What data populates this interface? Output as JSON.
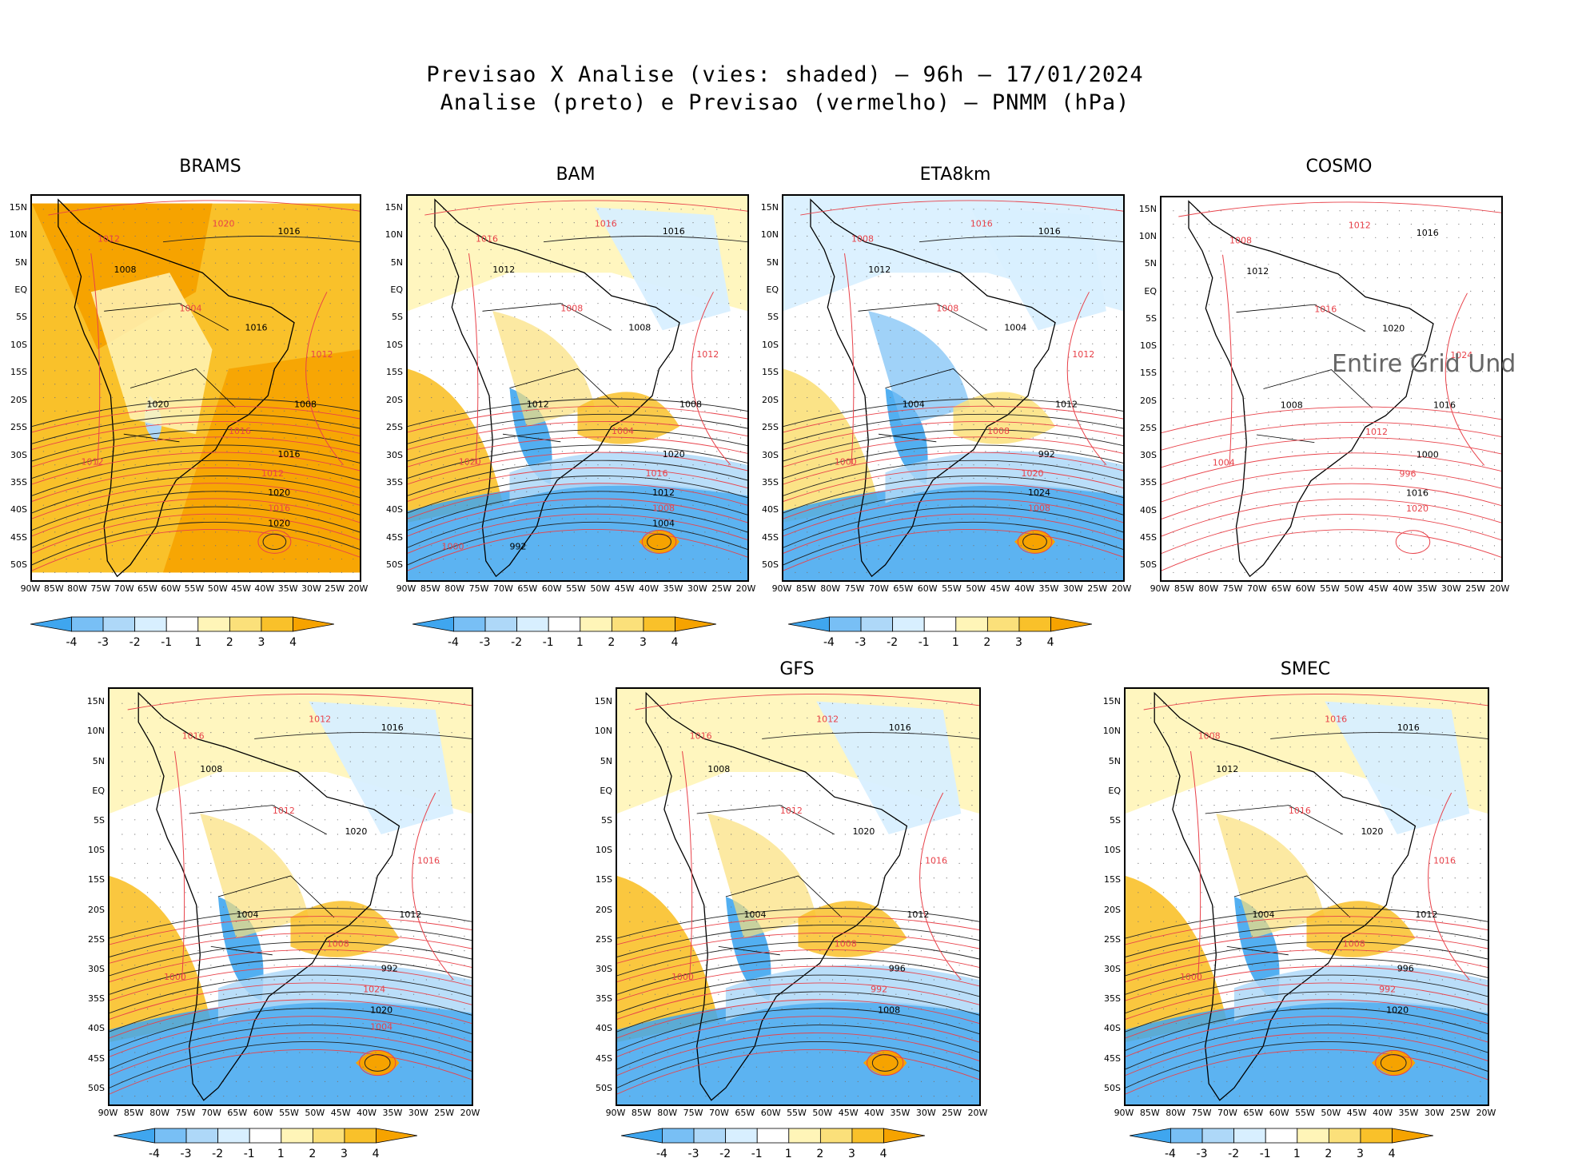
{
  "title_line1": "Previsao X Analise (vies: shaded) – 96h – 17/01/2024",
  "title_line2": "Analise (preto) e Previsao (vermelho) – PNMM (hPa)",
  "lat_ticks": [
    "15N",
    "10N",
    "5N",
    "EQ",
    "5S",
    "10S",
    "15S",
    "20S",
    "25S",
    "30S",
    "35S",
    "40S",
    "45S",
    "50S"
  ],
  "lon_ticks": [
    "90W",
    "85W",
    "80W",
    "75W",
    "70W",
    "65W",
    "60W",
    "55W",
    "50W",
    "45W",
    "40W",
    "35W",
    "30W",
    "25W",
    "20W"
  ],
  "colorbar_labels": [
    "-4",
    "-3",
    "-2",
    "-1",
    "1",
    "2",
    "3",
    "4"
  ],
  "colors": {
    "neg4": "#3fa6ef",
    "neg3": "#78bff5",
    "neg2": "#aed8f8",
    "neg1": "#d8efff",
    "pos1": "#fff5b8",
    "pos2": "#fbe07a",
    "pos3": "#f9c12a",
    "pos4": "#f6a300",
    "red_contour": "#e8424a",
    "black_contour": "#000000"
  },
  "panels": [
    {
      "name": "BRAMS",
      "undefined_text": "",
      "contours": [
        "1020",
        "1016",
        "1012",
        "1008",
        "1004",
        "1016",
        "1012",
        "1008",
        "1016",
        "1020",
        "1012",
        "1016",
        "1012",
        "1020",
        "1016",
        "1020"
      ]
    },
    {
      "name": "BAM",
      "undefined_text": "",
      "contours": [
        "1016",
        "1016",
        "1016",
        "1012",
        "1008",
        "1008",
        "1012",
        "1008",
        "1004",
        "1012",
        "1020",
        "1020",
        "1016",
        "1012",
        "1008",
        "1004",
        "1000",
        "992"
      ]
    },
    {
      "name": "ETA8km",
      "undefined_text": "",
      "contours": [
        "1016",
        "1016",
        "1008",
        "1012",
        "1008",
        "1004",
        "1012",
        "1012",
        "1008",
        "1004",
        "1000",
        "992",
        "1020",
        "1024",
        "1008"
      ]
    },
    {
      "name": "COSMO",
      "undefined_text": "Entire Grid Und",
      "contours": [
        "1012",
        "1016",
        "1008",
        "1012",
        "1016",
        "1020",
        "1024",
        "1016",
        "1012",
        "1008",
        "1004",
        "1000",
        "996",
        "1016",
        "1020"
      ]
    },
    {
      "name": "",
      "undefined_text": "",
      "contours": [
        "1012",
        "1016",
        "1016",
        "1008",
        "1012",
        "1020",
        "1016",
        "1012",
        "1008",
        "1004",
        "1000",
        "992",
        "1024",
        "1020",
        "1004"
      ]
    },
    {
      "name": "GFS",
      "undefined_text": "",
      "contours": [
        "1012",
        "1016",
        "1016",
        "1008",
        "1012",
        "1020",
        "1016",
        "1012",
        "1008",
        "1004",
        "1000",
        "996",
        "992",
        "1008"
      ]
    },
    {
      "name": "SMEC",
      "undefined_text": "",
      "contours": [
        "1016",
        "1016",
        "1008",
        "1012",
        "1016",
        "1020",
        "1016",
        "1012",
        "1008",
        "1004",
        "1000",
        "996",
        "992",
        "1020"
      ]
    }
  ]
}
